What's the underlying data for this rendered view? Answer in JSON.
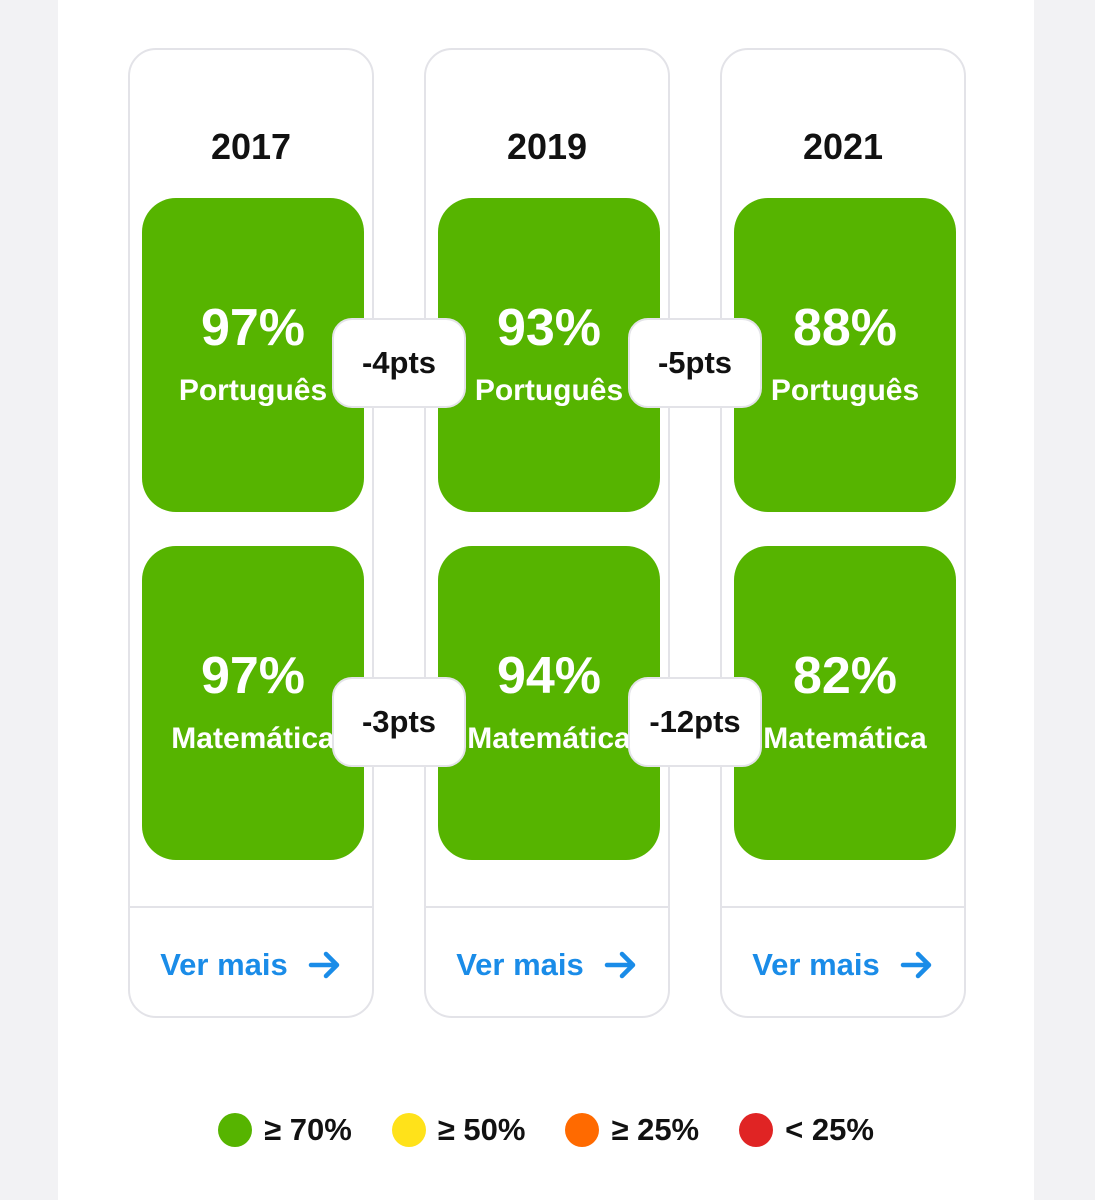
{
  "colors": {
    "green": "#56b400",
    "yellow": "#ffe21a",
    "orange": "#ff6a00",
    "red": "#e02424",
    "link": "#1a8ce8"
  },
  "cards": [
    {
      "year": "2017",
      "portugues": {
        "value": "97%",
        "label": "Português"
      },
      "matematica": {
        "value": "97%",
        "label": "Matemática"
      },
      "link_label": "Ver mais"
    },
    {
      "year": "2019",
      "portugues": {
        "value": "93%",
        "label": "Português"
      },
      "matematica": {
        "value": "94%",
        "label": "Matemática"
      },
      "link_label": "Ver mais"
    },
    {
      "year": "2021",
      "portugues": {
        "value": "88%",
        "label": "Português"
      },
      "matematica": {
        "value": "82%",
        "label": "Matemática"
      },
      "link_label": "Ver mais"
    }
  ],
  "deltas": {
    "portugues": [
      "-4pts",
      "-5pts"
    ],
    "matematica": [
      "-3pts",
      "-12pts"
    ]
  },
  "legend": [
    {
      "label": "≥ 70%",
      "color": "#56b400"
    },
    {
      "label": "≥ 50%",
      "color": "#ffe21a"
    },
    {
      "label": "≥ 25%",
      "color": "#ff6a00"
    },
    {
      "label": "< 25%",
      "color": "#e02424"
    }
  ]
}
